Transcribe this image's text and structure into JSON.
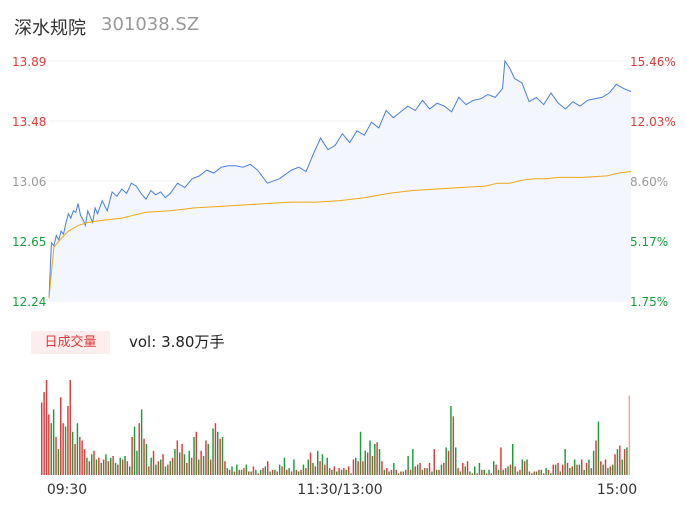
{
  "header": {
    "name": "深水规院",
    "code": "301038.SZ"
  },
  "volume_panel": {
    "tab_label": "日成交量",
    "vol_label": "vol:",
    "vol_value": "3.80万手"
  },
  "colors": {
    "price_line": "#4a7fe0",
    "avg_line": "#f0a818",
    "up": "#e23a3a",
    "down": "#1a9e3c",
    "fill": "#f3f6fd",
    "axis_text": "#999999"
  },
  "chart_data": [
    {
      "type": "line",
      "title": "",
      "y_left_ticks": [
        "13.89",
        "13.48",
        "13.06",
        "12.65",
        "12.24"
      ],
      "y_right_ticks": [
        "15.46%",
        "12.03%",
        "8.60%",
        "5.17%",
        "1.75%"
      ],
      "ylim": [
        12.24,
        13.89
      ],
      "x_range": [
        0,
        240
      ],
      "series": [
        {
          "role": "price",
          "x": [
            0,
            1,
            2,
            3,
            4,
            5,
            6,
            7,
            8,
            9,
            10,
            11,
            12,
            13,
            14,
            15,
            16,
            17,
            18,
            19,
            20,
            22,
            24,
            26,
            28,
            30,
            32,
            34,
            36,
            38,
            40,
            42,
            44,
            46,
            48,
            50,
            53,
            56,
            59,
            62,
            65,
            68,
            71,
            74,
            77,
            80,
            83,
            86,
            90,
            95,
            100,
            103,
            106,
            109,
            112,
            115,
            118,
            121,
            124,
            127,
            130,
            133,
            136,
            139,
            142,
            145,
            148,
            151,
            154,
            157,
            160,
            163,
            166,
            169,
            172,
            175,
            178,
            181,
            184,
            187,
            188,
            190,
            192,
            195,
            198,
            201,
            204,
            207,
            210,
            213,
            216,
            219,
            222,
            225,
            228,
            231,
            234,
            237,
            240
          ],
          "y": [
            12.26,
            12.64,
            12.62,
            12.69,
            12.66,
            12.72,
            12.7,
            12.78,
            12.84,
            12.81,
            12.86,
            12.85,
            12.91,
            12.83,
            12.8,
            12.76,
            12.86,
            12.82,
            12.78,
            12.88,
            12.84,
            12.93,
            12.86,
            12.99,
            12.96,
            13.01,
            12.98,
            13.05,
            13.03,
            12.98,
            12.94,
            13.0,
            12.97,
            12.99,
            12.95,
            12.98,
            13.05,
            13.02,
            13.08,
            13.1,
            13.14,
            13.12,
            13.16,
            13.17,
            13.17,
            13.16,
            13.18,
            13.14,
            13.05,
            13.08,
            13.14,
            13.16,
            13.13,
            13.25,
            13.36,
            13.28,
            13.31,
            13.39,
            13.33,
            13.41,
            13.38,
            13.47,
            13.43,
            13.55,
            13.5,
            13.54,
            13.58,
            13.55,
            13.62,
            13.56,
            13.6,
            13.58,
            13.54,
            13.64,
            13.59,
            13.62,
            13.63,
            13.66,
            13.64,
            13.7,
            13.89,
            13.84,
            13.77,
            13.74,
            13.61,
            13.64,
            13.59,
            13.67,
            13.6,
            13.56,
            13.61,
            13.58,
            13.62,
            13.63,
            13.64,
            13.67,
            13.73,
            13.7,
            13.68
          ],
          "x_ticks": [
            "09:30",
            "11:30/13:00",
            "15:00"
          ]
        },
        {
          "role": "average",
          "x": [
            0,
            2,
            5,
            8,
            12,
            16,
            20,
            25,
            30,
            35,
            40,
            50,
            60,
            70,
            80,
            90,
            100,
            110,
            120,
            130,
            140,
            150,
            160,
            170,
            180,
            185,
            190,
            195,
            200,
            205,
            210,
            220,
            230,
            235,
            240
          ],
          "y": [
            12.26,
            12.61,
            12.67,
            12.72,
            12.76,
            12.78,
            12.79,
            12.8,
            12.81,
            12.83,
            12.85,
            12.86,
            12.88,
            12.89,
            12.9,
            12.91,
            12.92,
            12.92,
            12.93,
            12.95,
            12.98,
            13.0,
            13.01,
            13.02,
            13.03,
            13.05,
            13.05,
            13.07,
            13.08,
            13.08,
            13.09,
            13.09,
            13.1,
            13.12,
            13.13
          ]
        }
      ]
    },
    {
      "type": "bar",
      "title": "",
      "x_range": [
        0,
        240
      ],
      "colors_key": [
        "up",
        "down"
      ],
      "values": [
        42,
        48,
        55,
        35,
        30,
        38,
        22,
        15,
        45,
        30,
        28,
        40,
        55,
        25,
        18,
        30,
        22,
        20,
        15,
        10,
        8,
        12,
        14,
        9,
        10,
        7,
        9,
        12,
        8,
        10,
        11,
        7,
        6,
        10,
        9,
        11,
        8,
        5,
        22,
        28,
        14,
        30,
        38,
        21,
        18,
        5,
        10,
        14,
        6,
        8,
        9,
        12,
        5,
        6,
        8,
        10,
        15,
        20,
        13,
        18,
        12,
        7,
        14,
        10,
        22,
        25,
        9,
        14,
        11,
        20,
        18,
        9,
        27,
        30,
        25,
        21,
        22,
        8,
        4,
        3,
        5,
        2,
        6,
        3,
        3,
        4,
        6,
        2,
        2,
        5,
        3,
        1,
        3,
        4,
        5,
        8,
        2,
        3,
        3,
        2,
        6,
        5,
        10,
        3,
        4,
        2,
        9,
        3,
        2,
        3,
        6,
        4,
        9,
        13,
        7,
        5,
        14,
        8,
        12,
        6,
        10,
        4,
        3,
        5,
        2,
        4,
        3,
        4,
        3,
        5,
        1,
        9,
        10,
        8,
        25,
        8,
        14,
        13,
        20,
        11,
        18,
        19,
        15,
        8,
        3,
        4,
        2,
        3,
        7,
        3,
        1,
        2,
        2,
        3,
        11,
        3,
        15,
        5,
        6,
        7,
        3,
        4,
        4,
        7,
        2,
        15,
        3,
        3,
        6,
        7,
        16,
        14,
        40,
        34,
        16,
        4,
        2,
        7,
        5,
        8,
        2,
        1,
        5,
        1,
        7,
        3,
        3,
        1,
        3,
        1,
        8,
        6,
        3,
        16,
        3,
        4,
        5,
        6,
        18,
        5,
        2,
        3,
        9,
        8,
        9,
        2,
        1,
        2,
        2,
        3,
        3,
        1,
        4,
        3,
        1,
        6,
        6,
        7,
        2,
        6,
        15,
        7,
        4,
        5,
        9,
        6,
        6,
        9,
        3,
        7,
        9,
        4,
        14,
        20,
        31,
        8,
        6,
        9,
        4,
        5,
        6,
        12,
        15,
        17,
        9,
        15,
        16,
        46
      ],
      "directions": [
        "up",
        "up",
        "up",
        "up",
        "down",
        "down",
        "up",
        "down",
        "up",
        "up",
        "down",
        "up",
        "up",
        "down",
        "up",
        "down",
        "up",
        "up",
        "up",
        "down",
        "up",
        "down",
        "up",
        "down",
        "up",
        "down",
        "up",
        "down",
        "up",
        "down",
        "up",
        "down",
        "up",
        "down",
        "up",
        "down",
        "up",
        "down",
        "up",
        "down",
        "down",
        "up",
        "down",
        "up",
        "down",
        "up",
        "down",
        "up",
        "down",
        "up",
        "down",
        "up",
        "down",
        "up",
        "down",
        "up",
        "down",
        "up",
        "down",
        "up",
        "down",
        "up",
        "down",
        "up",
        "down",
        "up",
        "down",
        "up",
        "down",
        "up",
        "down",
        "up",
        "down",
        "up",
        "down",
        "up",
        "down",
        "up",
        "down",
        "up",
        "down",
        "up",
        "down",
        "up",
        "down",
        "up",
        "down",
        "up",
        "down",
        "up",
        "down",
        "up",
        "down",
        "up",
        "down",
        "up",
        "down",
        "up",
        "down",
        "up",
        "down",
        "up",
        "down",
        "up",
        "down",
        "up",
        "down",
        "up",
        "down",
        "up",
        "down",
        "up",
        "down",
        "up",
        "down",
        "up",
        "down",
        "up",
        "down",
        "up",
        "down",
        "up",
        "down",
        "up",
        "down",
        "up",
        "down",
        "up",
        "down",
        "up",
        "down",
        "up",
        "down",
        "up",
        "down",
        "up",
        "down",
        "up",
        "down",
        "up",
        "down",
        "up",
        "down",
        "up",
        "down",
        "up",
        "down",
        "up",
        "down",
        "up",
        "down",
        "up",
        "down",
        "up",
        "down",
        "up",
        "down",
        "up",
        "down",
        "up",
        "down",
        "up",
        "down",
        "up",
        "down",
        "up",
        "down",
        "up",
        "down",
        "up",
        "down",
        "up",
        "down",
        "up",
        "down",
        "up",
        "down",
        "up",
        "down",
        "up",
        "down",
        "up",
        "down",
        "up",
        "down",
        "up",
        "down",
        "up",
        "down",
        "up",
        "down",
        "up",
        "down",
        "up",
        "down",
        "up",
        "down",
        "up",
        "down",
        "up",
        "down",
        "up",
        "down",
        "up",
        "down",
        "up",
        "down",
        "up",
        "down",
        "up",
        "down",
        "up",
        "down",
        "up",
        "down",
        "up",
        "down",
        "up",
        "down",
        "up",
        "down",
        "up",
        "down",
        "up",
        "down",
        "up",
        "down",
        "up",
        "down",
        "up",
        "down",
        "up",
        "down",
        "up",
        "down",
        "up",
        "down",
        "up",
        "down",
        "up",
        "down",
        "up",
        "down",
        "up",
        "down",
        "up",
        "down",
        "up",
        "down",
        "up",
        "down",
        "up",
        "down",
        "up",
        "down",
        "up",
        "down",
        "up",
        "down",
        "up",
        "down",
        "up",
        "down",
        "up",
        "down",
        "up",
        "down",
        "up",
        "down",
        "up",
        "down",
        "up",
        "down",
        "up"
      ]
    }
  ]
}
